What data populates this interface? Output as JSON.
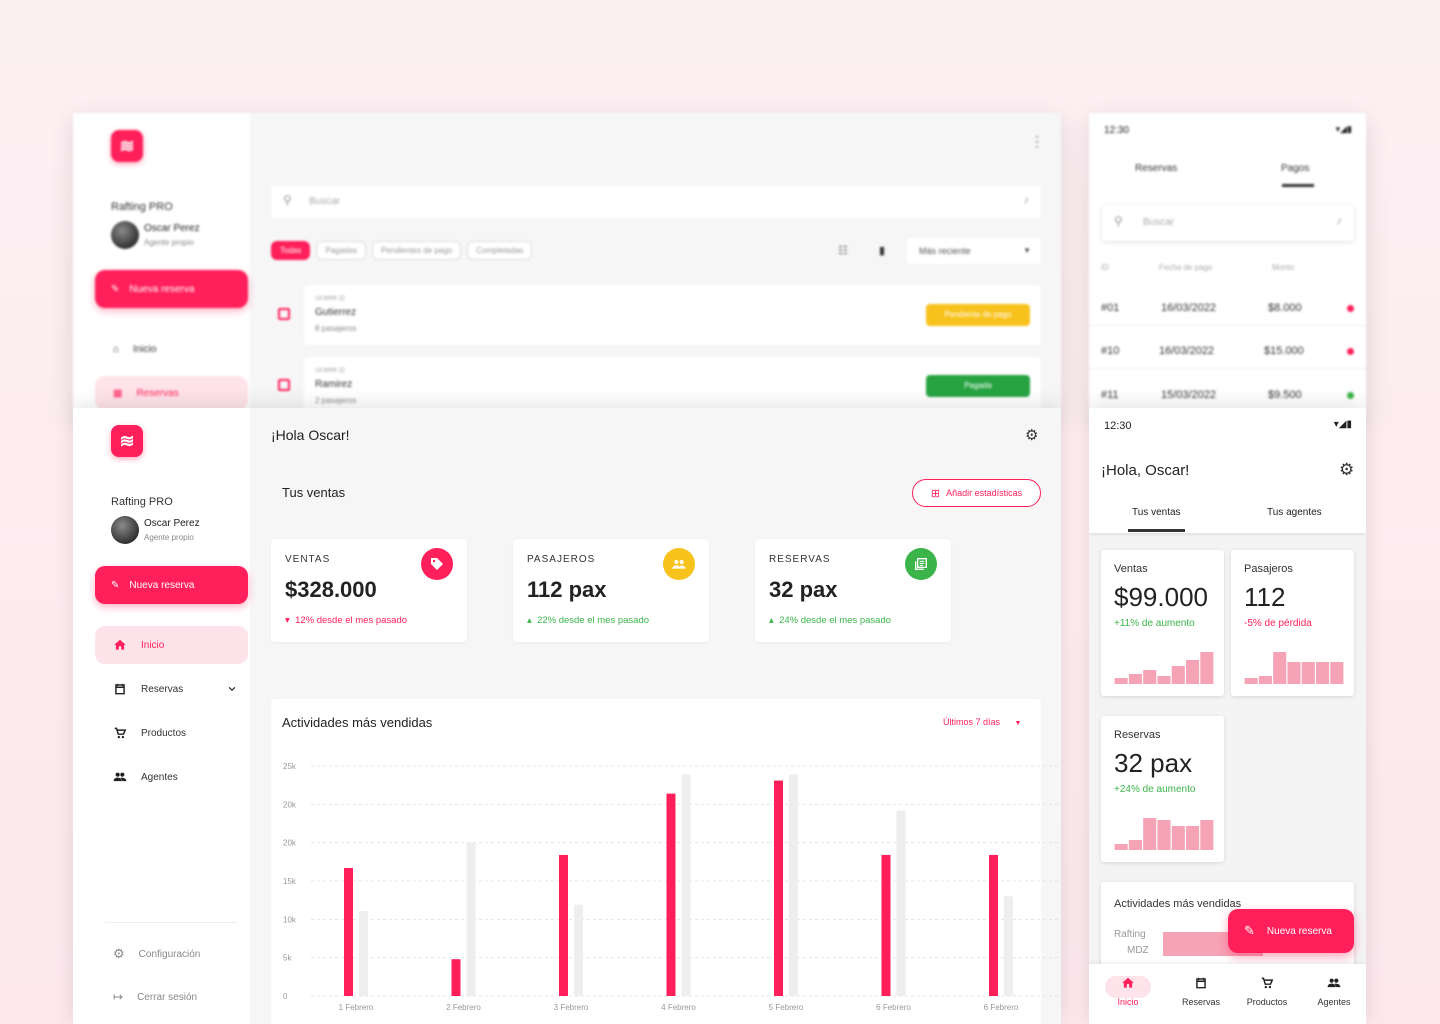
{
  "colors": {
    "accent": "#ff1f5a",
    "accent_light": "#f5a3b5",
    "green": "#3bb54a",
    "yellow": "#f8c21c",
    "green_btn": "#27a342",
    "muted_bar": "#eeeeee"
  },
  "bg_desktop": {
    "brand": "Rafting PRO",
    "user_name": "Oscar Perez",
    "user_role": "Agente propio",
    "new_button": "Nueva reserva",
    "nav_home": "Inicio",
    "nav_reservas": "Reservas",
    "search_placeholder": "Buscar",
    "filters": [
      "Todas",
      "Pagadas",
      "Pendientes de pago",
      "Completadas"
    ],
    "sort_label": "Más reciente",
    "rows": [
      {
        "date": "14 MAR 22",
        "name": "Gutierrez",
        "pax": "8 pasajeros",
        "status": "Pendiente de pago"
      },
      {
        "date": "14 MAR 22",
        "name": "Ramirez",
        "pax": "2 pasajeros",
        "status": "Pagada"
      }
    ]
  },
  "bg_phone": {
    "time": "12:30",
    "tabs": [
      "Reservas",
      "Pagos"
    ],
    "search_placeholder": "Buscar",
    "columns": [
      "ID",
      "Fecha de pago",
      "Monto"
    ],
    "rows": [
      {
        "id": "#01",
        "date": "16/03/2022",
        "amount": "$8.000"
      },
      {
        "id": "#10",
        "date": "16/03/2022",
        "amount": "$15.000"
      },
      {
        "id": "#11",
        "date": "15/03/2022",
        "amount": "$9.500"
      }
    ]
  },
  "desktop": {
    "greeting": "¡Hola Oscar!",
    "brand": "Rafting PRO",
    "user_name": "Oscar Perez",
    "user_role": "Agente propio",
    "new_button": "Nueva reserva",
    "nav": {
      "home": "Inicio",
      "reservas": "Reservas",
      "productos": "Productos",
      "agentes": "Agentes",
      "config": "Configuración",
      "logout": "Cerrar sesión"
    },
    "section_title": "Tus ventas",
    "add_stats": "Añadir estadísticas",
    "stats": [
      {
        "label": "VENTAS",
        "value": "$328.000",
        "delta": "12% desde el mes pasado",
        "trend": "down"
      },
      {
        "label": "PASAJEROS",
        "value": "112 pax",
        "delta": "22% desde el mes pasado",
        "trend": "up"
      },
      {
        "label": "RESERVAS",
        "value": "32 pax",
        "delta": "24% desde el mes pasado",
        "trend": "up"
      }
    ],
    "chart_title": "Actividades más vendidas",
    "chart_range": "Últimos 7 días"
  },
  "chart_data": {
    "type": "bar",
    "title": "Actividades más vendidas",
    "categories": [
      "1 Febrero",
      "2 Febrero",
      "3 Febrero",
      "4 Febrero",
      "5 Febrero",
      "6 Febrero",
      "6 Febrero"
    ],
    "y_ticks": [
      "0",
      "5k",
      "10k",
      "15k",
      "20k",
      "20k",
      "25k"
    ],
    "series": [
      {
        "color": "#ff1f5a",
        "values": [
          16.7,
          4.8,
          18.4,
          26.4,
          28.1,
          18.4,
          18.4
        ]
      },
      {
        "color": "#eeeeee",
        "values": [
          11.1,
          20.0,
          11.9,
          28.9,
          28.9,
          24.2,
          13.0
        ]
      }
    ],
    "ylim": [
      0,
      30
    ],
    "grid": true
  },
  "phone": {
    "time": "12:30",
    "greeting": "¡Hola, Oscar!",
    "tabs": [
      "Tus ventas",
      "Tus agentes"
    ],
    "cards": [
      {
        "label": "Ventas",
        "value": "$99.000",
        "delta": "+11% de aumento",
        "trend": "up",
        "bars": [
          15,
          25,
          35,
          20,
          45,
          60,
          80
        ]
      },
      {
        "label": "Pasajeros",
        "value": "112",
        "delta": "-5% de pérdida",
        "trend": "down",
        "bars": [
          15,
          20,
          80,
          55,
          55,
          55,
          55
        ]
      },
      {
        "label": "Reservas",
        "value": "32 pax",
        "delta": "+24% de aumento",
        "trend": "up",
        "bars": [
          15,
          25,
          80,
          75,
          60,
          60,
          75
        ]
      }
    ],
    "activities_title": "Actividades más vendidas",
    "activity_label_1": "Rafting",
    "activity_label_2": "MDZ",
    "fab": "Nueva reserva",
    "bottom_nav": [
      "Inicio",
      "Reservas",
      "Productos",
      "Agentes"
    ]
  }
}
